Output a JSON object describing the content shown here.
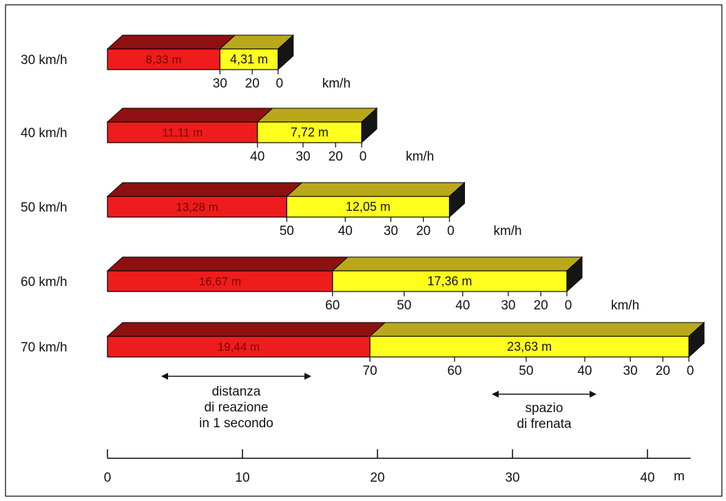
{
  "axis": {
    "unit": "m",
    "ticks": [
      0,
      10,
      20,
      30,
      40
    ],
    "tick_labels": [
      "0",
      "10",
      "20",
      "30",
      "40"
    ],
    "max": 43.2
  },
  "colors": {
    "reaction_front": "#ee1c1c",
    "reaction_top": "#8e1010",
    "braking_front": "#ffff1e",
    "braking_top": "#b8a81a",
    "end_face": "#151515",
    "frame": "#000000"
  },
  "rows": [
    {
      "speed_label": "30 km/h",
      "reaction_m": 8.33,
      "braking_m": 4.31,
      "reaction_label": "8,33 m",
      "braking_label": "4,31 m",
      "speed_ticks": [
        {
          "value": 30,
          "label": "30"
        },
        {
          "value": 20,
          "label": "20"
        },
        {
          "value": 0,
          "label": "0"
        }
      ],
      "unit_label": "km/h"
    },
    {
      "speed_label": "40 km/h",
      "reaction_m": 11.11,
      "braking_m": 7.72,
      "reaction_label": "11,11 m",
      "braking_label": "7,72 m",
      "speed_ticks": [
        {
          "value": 40,
          "label": "40"
        },
        {
          "value": 30,
          "label": "30"
        },
        {
          "value": 20,
          "label": "20"
        },
        {
          "value": 0,
          "label": "0"
        }
      ],
      "unit_label": "km/h"
    },
    {
      "speed_label": "50 km/h",
      "reaction_m": 13.28,
      "braking_m": 12.05,
      "reaction_label": "13,28 m",
      "braking_label": "12,05 m",
      "speed_ticks": [
        {
          "value": 50,
          "label": "50"
        },
        {
          "value": 40,
          "label": "40"
        },
        {
          "value": 30,
          "label": "30"
        },
        {
          "value": 20,
          "label": "20"
        },
        {
          "value": 0,
          "label": "0"
        }
      ],
      "unit_label": "km/h"
    },
    {
      "speed_label": "60 km/h",
      "reaction_m": 16.67,
      "braking_m": 17.36,
      "reaction_label": "16,67 m",
      "braking_label": "17,36 m",
      "speed_ticks": [
        {
          "value": 60,
          "label": "60"
        },
        {
          "value": 50,
          "label": "50"
        },
        {
          "value": 40,
          "label": "40"
        },
        {
          "value": 30,
          "label": "30"
        },
        {
          "value": 20,
          "label": "20"
        },
        {
          "value": 0,
          "label": "0"
        }
      ],
      "unit_label": "km/h"
    },
    {
      "speed_label": "70 km/h",
      "reaction_m": 19.44,
      "braking_m": 23.63,
      "reaction_label": "19,44 m",
      "braking_label": "23,63 m",
      "speed_ticks": [
        {
          "value": 70,
          "label": "70"
        },
        {
          "value": 60,
          "label": "60"
        },
        {
          "value": 50,
          "label": "50"
        },
        {
          "value": 40,
          "label": "40"
        },
        {
          "value": 30,
          "label": "30"
        },
        {
          "value": 20,
          "label": "20"
        },
        {
          "value": 0,
          "label": "0"
        }
      ],
      "unit_label": ""
    }
  ],
  "annotations": {
    "reaction": [
      "distanza",
      "di reazione",
      "in 1 secondo"
    ],
    "braking": [
      "spazio",
      "di frenata"
    ]
  }
}
